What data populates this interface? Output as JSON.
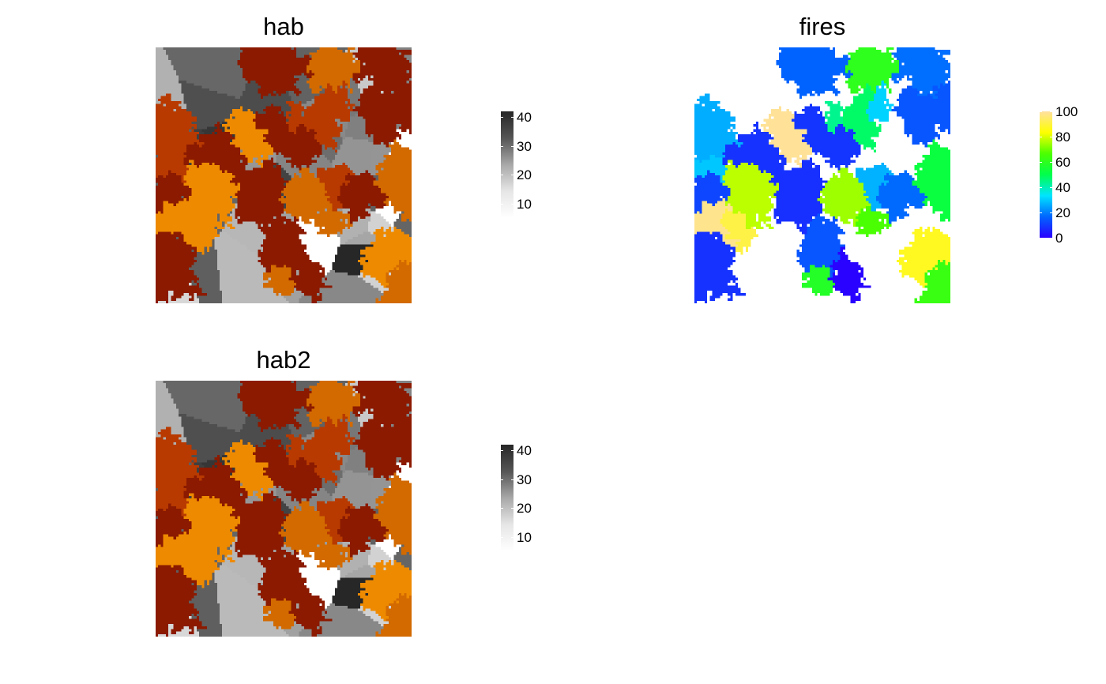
{
  "chart_data": [
    {
      "type": "heatmap",
      "title": "hab",
      "palette": "overlay: grey gradient (#f2f2f2 to #262626) for habitat values; burned cells drawn in fire colours",
      "colors": {
        "grey_low": "#f2f2f2",
        "grey_high": "#262626",
        "fire_dark": "#8b1a00",
        "fire_mid": "#b83a00",
        "fire_orange": "#d26a00",
        "fire_light": "#ee8a00"
      },
      "legend": {
        "range": [
          5,
          42
        ],
        "ticks": [
          10,
          20,
          30,
          40
        ],
        "tick_labels": [
          "10",
          "20",
          "30",
          "40"
        ],
        "placement": "right"
      }
    },
    {
      "type": "heatmap",
      "title": "fires",
      "palette": "topo-like: blue, cyan, green, yellow, wheat",
      "colors": {
        "stops": [
          "#2a00ff",
          "#0066ff",
          "#00e5ff",
          "#00ff4c",
          "#4cff00",
          "#ffff00",
          "#ffe0a0"
        ]
      },
      "legend": {
        "range": [
          0,
          100
        ],
        "ticks": [
          0,
          20,
          40,
          60,
          80,
          100
        ],
        "tick_labels": [
          "0",
          "20",
          "40",
          "60",
          "80",
          "100"
        ],
        "placement": "right"
      }
    },
    {
      "type": "heatmap",
      "title": "hab2",
      "palette": "overlay: grey gradient (#f2f2f2 to #262626) for habitat values; burned cells drawn in fire colours",
      "colors": {
        "grey_low": "#f2f2f2",
        "grey_high": "#262626",
        "fire_dark": "#8b1a00",
        "fire_mid": "#b83a00",
        "fire_orange": "#d26a00",
        "fire_light": "#ee8a00"
      },
      "legend": {
        "range": [
          5,
          42
        ],
        "ticks": [
          10,
          20,
          30,
          40
        ],
        "tick_labels": [
          "10",
          "20",
          "30",
          "40"
        ],
        "placement": "right"
      }
    }
  ]
}
